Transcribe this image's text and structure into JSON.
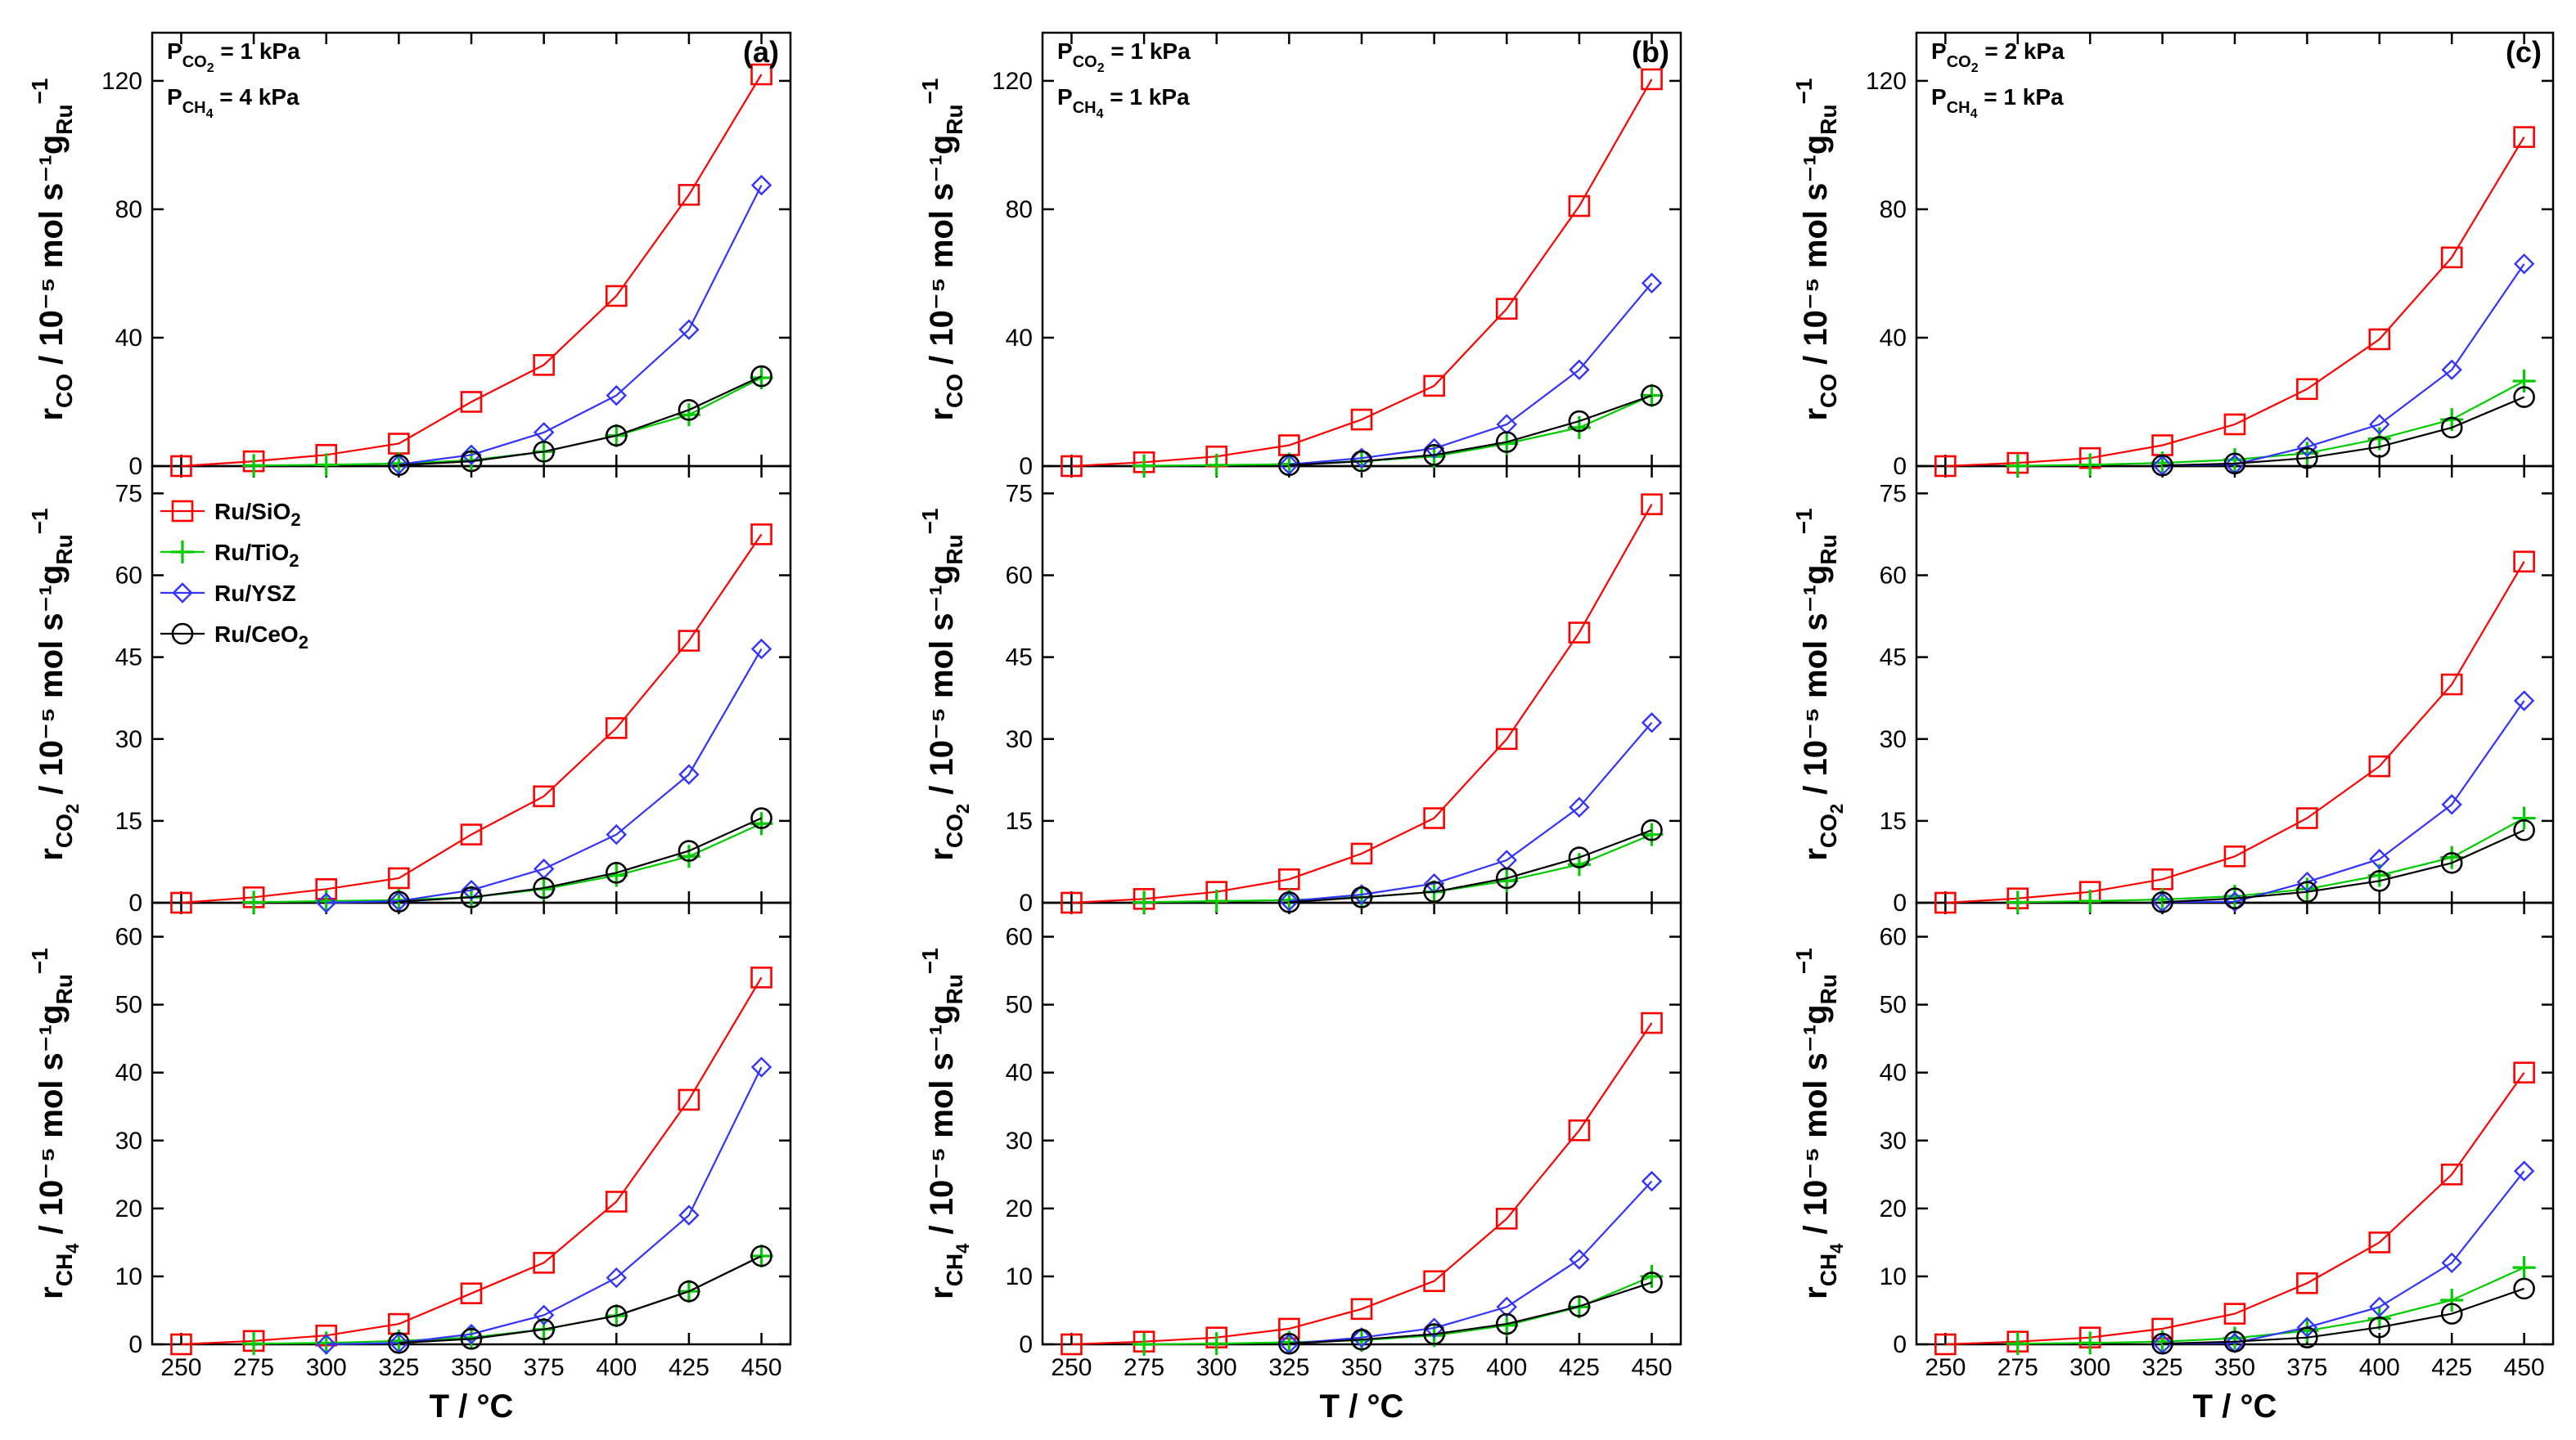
{
  "figure": {
    "x_axis_title": "T / °C",
    "units": "/ 10⁻⁵ mol s⁻¹g",
    "units_sub": "Ru",
    "units_sup": "−1",
    "row_quantities": [
      {
        "main": "r",
        "sub": "CO",
        "sub2": ""
      },
      {
        "main": "r",
        "sub": "CO",
        "sub2": "2"
      },
      {
        "main": "r",
        "sub": "CH",
        "sub2": "4"
      }
    ]
  },
  "columns": [
    {
      "label": "(a)",
      "conditions": [
        {
          "p": "P",
          "sub": "CO",
          "subsub": "2",
          "val": " = 1 kPa"
        },
        {
          "p": "P",
          "sub": "CH",
          "subsub": "4",
          "val": " = 4 kPa"
        }
      ]
    },
    {
      "label": "(b)",
      "conditions": [
        {
          "p": "P",
          "sub": "CO",
          "subsub": "2",
          "val": " = 1 kPa"
        },
        {
          "p": "P",
          "sub": "CH",
          "subsub": "4",
          "val": " = 1 kPa"
        }
      ]
    },
    {
      "label": "(c)",
      "conditions": [
        {
          "p": "P",
          "sub": "CO",
          "subsub": "2",
          "val": " = 2 kPa"
        },
        {
          "p": "P",
          "sub": "CH",
          "subsub": "4",
          "val": " = 1 kPa"
        }
      ]
    }
  ],
  "legend": [
    {
      "main": "Ru/SiO",
      "sub": "2"
    },
    {
      "main": "Ru/TiO",
      "sub": "2"
    },
    {
      "main": "Ru/YSZ",
      "sub": ""
    },
    {
      "main": "Ru/CeO",
      "sub": "2"
    }
  ],
  "colors": {
    "SiO2": "#ff0000",
    "TiO2": "#00cc00",
    "YSZ": "#3333ff",
    "CeO2": "#000000"
  },
  "chart_data": {
    "type": "line",
    "x": [
      250,
      275,
      300,
      325,
      350,
      375,
      400,
      425,
      450
    ],
    "xlim": [
      240,
      460
    ],
    "xticks": [
      "250",
      "275",
      "300",
      "325",
      "350",
      "375",
      "400",
      "425",
      "450"
    ],
    "rows": [
      {
        "quantity": "r_CO",
        "ylim": [
          0,
          135
        ],
        "yticks": [
          "0",
          "40",
          "80",
          "120"
        ]
      },
      {
        "quantity": "r_CO2",
        "ylim": [
          0,
          80
        ],
        "yticks": [
          "0",
          "15",
          "30",
          "45",
          "60",
          "75"
        ]
      },
      {
        "quantity": "r_CH4",
        "ylim": [
          0,
          65
        ],
        "yticks": [
          "0",
          "10",
          "20",
          "30",
          "40",
          "50",
          "60"
        ]
      }
    ],
    "panels": [
      {
        "col": 0,
        "row": 0,
        "series": [
          {
            "name": "Ru/SiO2",
            "x": [
              250,
              275,
              300,
              325,
              350,
              375,
              400,
              425,
              450
            ],
            "values": [
              0,
              1.5,
              3.5,
              7,
              20,
              31.5,
              53,
              84.5,
              122
            ]
          },
          {
            "name": "Ru/TiO2",
            "x": [
              275,
              300,
              325,
              350,
              375,
              400,
              425,
              450
            ],
            "values": [
              0.2,
              0.4,
              0.8,
              1.8,
              4.5,
              9.5,
              16,
              27.5
            ]
          },
          {
            "name": "Ru/YSZ",
            "x": [
              325,
              350,
              375,
              400,
              425,
              450
            ],
            "values": [
              0.5,
              3.5,
              10.5,
              22,
              42.5,
              87.5
            ]
          },
          {
            "name": "Ru/CeO2",
            "x": [
              325,
              350,
              375,
              400,
              425,
              450
            ],
            "values": [
              0.3,
              1.5,
              4.5,
              9.5,
              17.5,
              28
            ]
          }
        ]
      },
      {
        "col": 0,
        "row": 1,
        "series": [
          {
            "name": "Ru/SiO2",
            "x": [
              250,
              275,
              300,
              325,
              350,
              375,
              400,
              425,
              450
            ],
            "values": [
              0,
              1,
              2.5,
              4.5,
              12.5,
              19.5,
              32,
              48,
              67.5
            ]
          },
          {
            "name": "Ru/TiO2",
            "x": [
              275,
              300,
              325,
              350,
              375,
              400,
              425,
              450
            ],
            "values": [
              0.1,
              0.3,
              0.5,
              1,
              2.5,
              5,
              8.5,
              14.5
            ]
          },
          {
            "name": "Ru/YSZ",
            "x": [
              300,
              325,
              350,
              375,
              400,
              425,
              450
            ],
            "values": [
              0,
              0.3,
              2.3,
              6.2,
              12.5,
              23.5,
              46.5
            ]
          },
          {
            "name": "Ru/CeO2",
            "x": [
              325,
              350,
              375,
              400,
              425,
              450
            ],
            "values": [
              0.2,
              1,
              2.7,
              5.5,
              9.5,
              15.5
            ]
          }
        ]
      },
      {
        "col": 0,
        "row": 2,
        "series": [
          {
            "name": "Ru/SiO2",
            "x": [
              250,
              275,
              300,
              325,
              350,
              375,
              400,
              425,
              450
            ],
            "values": [
              0,
              0.5,
              1.3,
              3,
              7.5,
              12,
              21,
              36,
              54
            ]
          },
          {
            "name": "Ru/TiO2",
            "x": [
              275,
              300,
              325,
              350,
              375,
              400,
              425,
              450
            ],
            "values": [
              0.1,
              0.2,
              0.5,
              1,
              2.2,
              4.2,
              7.8,
              13
            ]
          },
          {
            "name": "Ru/YSZ",
            "x": [
              300,
              325,
              350,
              375,
              400,
              425,
              450
            ],
            "values": [
              0,
              0.2,
              1.5,
              4.3,
              9.8,
              19,
              40.8
            ]
          },
          {
            "name": "Ru/CeO2",
            "x": [
              325,
              350,
              375,
              400,
              425,
              450
            ],
            "values": [
              0.2,
              0.8,
              2.2,
              4.2,
              7.8,
              13
            ]
          }
        ]
      },
      {
        "col": 1,
        "row": 0,
        "series": [
          {
            "name": "Ru/SiO2",
            "x": [
              250,
              275,
              300,
              325,
              350,
              375,
              400,
              425,
              450
            ],
            "values": [
              0,
              1.2,
              3,
              6.5,
              14.5,
              25,
              49,
              81,
              120.5
            ]
          },
          {
            "name": "Ru/TiO2",
            "x": [
              275,
              300,
              325,
              350,
              375,
              400,
              425,
              450
            ],
            "values": [
              0.1,
              0.3,
              0.6,
              1.5,
              3,
              7,
              12,
              22
            ]
          },
          {
            "name": "Ru/YSZ",
            "x": [
              325,
              350,
              375,
              400,
              425,
              450
            ],
            "values": [
              0.5,
              2.5,
              5.5,
              13,
              30,
              57
            ]
          },
          {
            "name": "Ru/CeO2",
            "x": [
              325,
              350,
              375,
              400,
              425,
              450
            ],
            "values": [
              0.3,
              1.5,
              3.5,
              7.5,
              14,
              22
            ]
          }
        ]
      },
      {
        "col": 1,
        "row": 1,
        "series": [
          {
            "name": "Ru/SiO2",
            "x": [
              250,
              275,
              300,
              325,
              350,
              375,
              400,
              425,
              450
            ],
            "values": [
              0,
              0.7,
              2,
              4.3,
              9,
              15.5,
              30,
              49.5,
              73
            ]
          },
          {
            "name": "Ru/TiO2",
            "x": [
              275,
              300,
              325,
              350,
              375,
              400,
              425,
              450
            ],
            "values": [
              0.1,
              0.3,
              0.5,
              1,
              2,
              4,
              7,
              12.5
            ]
          },
          {
            "name": "Ru/YSZ",
            "x": [
              325,
              350,
              375,
              400,
              425,
              450
            ],
            "values": [
              0.3,
              1.5,
              3.5,
              7.8,
              17.5,
              33
            ]
          },
          {
            "name": "Ru/CeO2",
            "x": [
              325,
              350,
              375,
              400,
              425,
              450
            ],
            "values": [
              0.1,
              1,
              2,
              4.5,
              8.3,
              13.3
            ]
          }
        ]
      },
      {
        "col": 1,
        "row": 2,
        "series": [
          {
            "name": "Ru/SiO2",
            "x": [
              250,
              275,
              300,
              325,
              350,
              375,
              400,
              425,
              450
            ],
            "values": [
              0,
              0.4,
              1,
              2.3,
              5.2,
              9.3,
              18.5,
              31.5,
              47.3
            ]
          },
          {
            "name": "Ru/TiO2",
            "x": [
              275,
              300,
              325,
              350,
              375,
              400,
              425,
              450
            ],
            "values": [
              0,
              0.1,
              0.3,
              0.6,
              1.3,
              2.8,
              5.5,
              10
            ]
          },
          {
            "name": "Ru/YSZ",
            "x": [
              325,
              350,
              375,
              400,
              425,
              450
            ],
            "values": [
              0.1,
              1,
              2.4,
              5.5,
              12.5,
              24
            ]
          },
          {
            "name": "Ru/CeO2",
            "x": [
              325,
              350,
              375,
              400,
              425,
              450
            ],
            "values": [
              0.1,
              0.7,
              1.5,
              3,
              5.6,
              9.1
            ]
          }
        ]
      },
      {
        "col": 2,
        "row": 0,
        "series": [
          {
            "name": "Ru/SiO2",
            "x": [
              250,
              275,
              300,
              325,
              350,
              375,
              400,
              425,
              450
            ],
            "values": [
              0,
              1,
              2.5,
              6.5,
              13,
              24,
              39.5,
              65,
              102.5
            ]
          },
          {
            "name": "Ru/TiO2",
            "x": [
              275,
              300,
              325,
              350,
              375,
              400,
              425,
              450
            ],
            "values": [
              0.1,
              0.4,
              1,
              2,
              4,
              8.5,
              14.5,
              26.5
            ]
          },
          {
            "name": "Ru/YSZ",
            "x": [
              325,
              350,
              375,
              400,
              425,
              450
            ],
            "values": [
              0.2,
              0.5,
              6,
              13,
              30,
              63
            ]
          },
          {
            "name": "Ru/CeO2",
            "x": [
              325,
              350,
              375,
              400,
              425,
              450
            ],
            "values": [
              0.2,
              0.8,
              2.5,
              6,
              12,
              21.5
            ]
          }
        ]
      },
      {
        "col": 2,
        "row": 1,
        "series": [
          {
            "name": "Ru/SiO2",
            "x": [
              250,
              275,
              300,
              325,
              350,
              375,
              400,
              425,
              450
            ],
            "values": [
              0,
              0.8,
              2,
              4.3,
              8.5,
              15.5,
              25,
              40,
              62.5
            ]
          },
          {
            "name": "Ru/TiO2",
            "x": [
              275,
              300,
              325,
              350,
              375,
              400,
              425,
              450
            ],
            "values": [
              0.1,
              0.3,
              0.6,
              1.2,
              2.5,
              5,
              8.3,
              15.5
            ]
          },
          {
            "name": "Ru/YSZ",
            "x": [
              325,
              350,
              375,
              400,
              425,
              450
            ],
            "values": [
              0.1,
              0.2,
              3.8,
              8,
              18,
              37
            ]
          },
          {
            "name": "Ru/CeO2",
            "x": [
              325,
              350,
              375,
              400,
              425,
              450
            ],
            "values": [
              0.1,
              0.8,
              2,
              4,
              7.3,
              13.3
            ]
          }
        ]
      },
      {
        "col": 2,
        "row": 2,
        "series": [
          {
            "name": "Ru/SiO2",
            "x": [
              250,
              275,
              300,
              325,
              350,
              375,
              400,
              425,
              450
            ],
            "values": [
              0,
              0.4,
              1,
              2.3,
              4.5,
              9,
              15,
              25,
              40
            ]
          },
          {
            "name": "Ru/TiO2",
            "x": [
              275,
              300,
              325,
              350,
              375,
              400,
              425,
              450
            ],
            "values": [
              0.1,
              0.2,
              0.4,
              0.9,
              2,
              3.8,
              6.5,
              11.3
            ]
          },
          {
            "name": "Ru/YSZ",
            "x": [
              325,
              350,
              375,
              400,
              425,
              450
            ],
            "values": [
              0.1,
              0.2,
              2.5,
              5.5,
              12,
              25.5
            ]
          },
          {
            "name": "Ru/CeO2",
            "x": [
              325,
              350,
              375,
              400,
              425,
              450
            ],
            "values": [
              0.1,
              0.4,
              1,
              2.5,
              4.5,
              8.2
            ]
          }
        ]
      }
    ]
  }
}
